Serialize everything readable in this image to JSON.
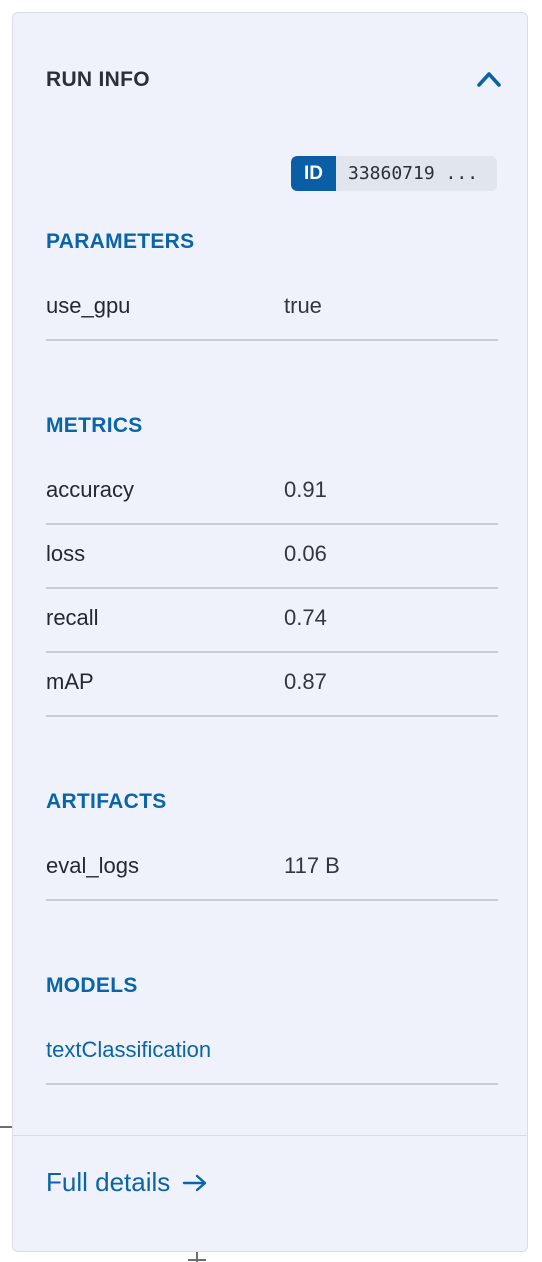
{
  "panel": {
    "title": "RUN INFO",
    "collapse_icon": "chevron-up-icon"
  },
  "run": {
    "id_label": "ID",
    "id_value": "33860719 ..."
  },
  "parameters": {
    "title": "PARAMETERS",
    "items": [
      {
        "key": "use_gpu",
        "value": "true"
      }
    ]
  },
  "metrics": {
    "title": "METRICS",
    "items": [
      {
        "key": "accuracy",
        "value": "0.91"
      },
      {
        "key": "loss",
        "value": "0.06"
      },
      {
        "key": "recall",
        "value": "0.74"
      },
      {
        "key": "mAP",
        "value": "0.87"
      }
    ]
  },
  "artifacts": {
    "title": "ARTIFACTS",
    "items": [
      {
        "key": "eval_logs",
        "value": "117 B"
      }
    ]
  },
  "models": {
    "title": "MODELS",
    "items": [
      {
        "name": "textClassification"
      }
    ]
  },
  "footer": {
    "full_details_label": "Full details",
    "arrow_icon": "arrow-right-icon"
  },
  "colors": {
    "accent": "#0a64a8",
    "panel_bg": "#eff2fb",
    "id_badge": "#0a5ea6"
  }
}
